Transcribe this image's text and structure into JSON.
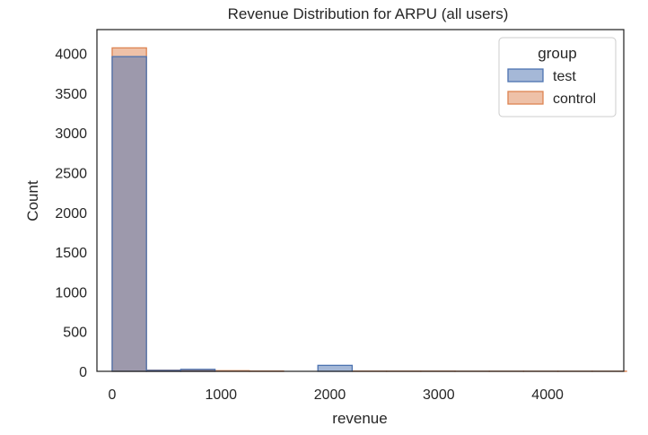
{
  "chart_data": {
    "type": "bar",
    "title": "Revenue Distribution for ARPU (all users)",
    "xlabel": "revenue",
    "ylabel": "Count",
    "xlim": [
      -140,
      4700
    ],
    "ylim": [
      0,
      4300
    ],
    "xticks": [
      0,
      1000,
      2000,
      3000,
      4000
    ],
    "yticks": [
      0,
      500,
      1000,
      1500,
      2000,
      2500,
      3000,
      3500,
      4000
    ],
    "grid": false,
    "legend": {
      "title": "group",
      "placement": "top-right"
    },
    "series": [
      {
        "name": "test",
        "color": "#4c72b0",
        "bins": [
          {
            "x0": 0,
            "x1": 315,
            "count": 3960
          },
          {
            "x0": 315,
            "x1": 630,
            "count": 12
          },
          {
            "x0": 630,
            "x1": 945,
            "count": 25
          },
          {
            "x0": 1890,
            "x1": 2205,
            "count": 75
          }
        ]
      },
      {
        "name": "control",
        "color": "#dd8452",
        "bins": [
          {
            "x0": 0,
            "x1": 315,
            "count": 4070
          },
          {
            "x0": 315,
            "x1": 630,
            "count": 15
          },
          {
            "x0": 630,
            "x1": 945,
            "count": 10
          },
          {
            "x0": 945,
            "x1": 1260,
            "count": 8
          },
          {
            "x0": 1260,
            "x1": 1575,
            "count": 4
          },
          {
            "x0": 2205,
            "x1": 2520,
            "count": 3
          },
          {
            "x0": 2520,
            "x1": 2835,
            "count": 3
          },
          {
            "x0": 2835,
            "x1": 3150,
            "count": 3
          },
          {
            "x0": 3150,
            "x1": 3465,
            "count": 2
          },
          {
            "x0": 3465,
            "x1": 3780,
            "count": 2
          },
          {
            "x0": 3780,
            "x1": 4095,
            "count": 2
          },
          {
            "x0": 4095,
            "x1": 4410,
            "count": 2
          },
          {
            "x0": 4410,
            "x1": 4725,
            "count": 2
          }
        ]
      }
    ]
  }
}
